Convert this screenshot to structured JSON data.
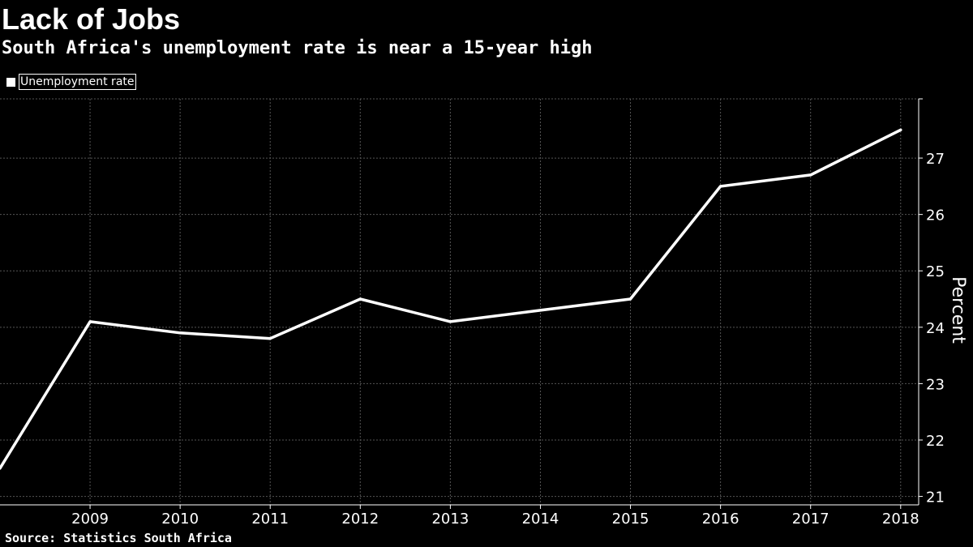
{
  "header": {
    "title": "Lack of Jobs",
    "subtitle": "South Africa's unemployment rate is near a 15-year high"
  },
  "footer": {
    "source": "Source: Statistics South Africa"
  },
  "colors": {
    "background": "#000000",
    "line": "#ffffff",
    "grid": "#555555",
    "text": "#ffffff"
  },
  "chart_data": {
    "type": "line",
    "title": "Lack of Jobs",
    "subtitle": "South Africa's unemployment rate is near a 15-year high",
    "ylabel": "Percent",
    "xlabel": "",
    "x_ticks": [
      "2009",
      "2010",
      "2011",
      "2012",
      "2013",
      "2014",
      "2015",
      "2016",
      "2017",
      "2018"
    ],
    "y_ticks": [
      21,
      22,
      23,
      24,
      25,
      26,
      27
    ],
    "xlim": [
      2008,
      2018.2
    ],
    "ylim": [
      20.85,
      28.05
    ],
    "y_axis_position": "right",
    "grid": true,
    "legend_position": "top-left",
    "series": [
      {
        "name": "Unemployment rate",
        "x": [
          2008,
          2009,
          2010,
          2011,
          2012,
          2013,
          2014,
          2015,
          2016,
          2017,
          2018
        ],
        "values": [
          21.5,
          24.1,
          23.9,
          23.8,
          24.5,
          24.1,
          24.3,
          24.5,
          26.5,
          26.7,
          27.5
        ]
      }
    ]
  }
}
